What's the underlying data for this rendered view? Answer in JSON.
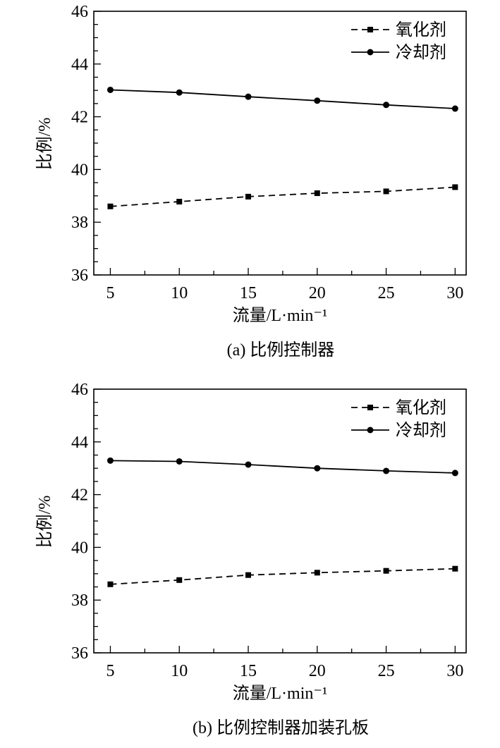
{
  "chart_data": [
    {
      "type": "line",
      "caption": "(a) 比例控制器",
      "xlabel": "流量/L·min⁻¹",
      "ylabel": "比例/%",
      "xlim": [
        3.8,
        30.8
      ],
      "ylim": [
        36,
        46
      ],
      "xticks": [
        5,
        10,
        15,
        20,
        25,
        30
      ],
      "yticks": [
        36,
        38,
        40,
        42,
        44,
        46
      ],
      "legend_position": "top-right",
      "grid": false,
      "series": [
        {
          "name": "氧化剂",
          "style": "dashed",
          "marker": "square",
          "color": "#000000",
          "x": [
            5,
            10,
            15,
            20,
            25,
            30
          ],
          "y": [
            38.6,
            38.78,
            38.97,
            39.1,
            39.17,
            39.33
          ]
        },
        {
          "name": "冷却剂",
          "style": "solid",
          "marker": "circle",
          "color": "#000000",
          "x": [
            5,
            10,
            15,
            20,
            25,
            30
          ],
          "y": [
            43.02,
            42.92,
            42.76,
            42.61,
            42.45,
            42.31
          ]
        }
      ]
    },
    {
      "type": "line",
      "caption": "(b) 比例控制器加装孔板",
      "xlabel": "流量/L·min⁻¹",
      "ylabel": "比例/%",
      "xlim": [
        3.8,
        30.8
      ],
      "ylim": [
        36,
        46
      ],
      "xticks": [
        5,
        10,
        15,
        20,
        25,
        30
      ],
      "yticks": [
        36,
        38,
        40,
        42,
        44,
        46
      ],
      "legend_position": "top-right",
      "grid": false,
      "series": [
        {
          "name": "氧化剂",
          "style": "dashed",
          "marker": "square",
          "color": "#000000",
          "x": [
            5,
            10,
            15,
            20,
            25,
            30
          ],
          "y": [
            38.6,
            38.76,
            38.95,
            39.04,
            39.11,
            39.19
          ]
        },
        {
          "name": "冷却剂",
          "style": "solid",
          "marker": "circle",
          "color": "#000000",
          "x": [
            5,
            10,
            15,
            20,
            25,
            30
          ],
          "y": [
            43.29,
            43.26,
            43.14,
            43.0,
            42.9,
            42.82
          ]
        }
      ]
    }
  ]
}
